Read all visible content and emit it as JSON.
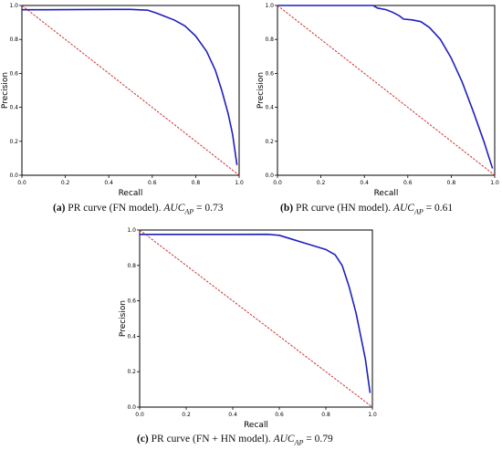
{
  "chart_data": [
    {
      "type": "line",
      "panel_id": "a",
      "xlabel": "Recall",
      "ylabel": "Precision",
      "xlim": [
        0,
        1
      ],
      "ylim": [
        0,
        1
      ],
      "xticks": [
        "0.0",
        "0.2",
        "0.4",
        "0.6",
        "0.8",
        "1.0"
      ],
      "yticks": [
        "0.0",
        "0.2",
        "0.4",
        "0.6",
        "0.8",
        "1.0"
      ],
      "grid": false,
      "series": [
        {
          "role": "pr-curve",
          "color": "#1f1fbf",
          "points": [
            [
              0,
              0.975
            ],
            [
              0.1,
              0.975
            ],
            [
              0.3,
              0.976
            ],
            [
              0.5,
              0.977
            ],
            [
              0.58,
              0.972
            ],
            [
              0.62,
              0.955
            ],
            [
              0.66,
              0.935
            ],
            [
              0.7,
              0.915
            ],
            [
              0.75,
              0.88
            ],
            [
              0.8,
              0.82
            ],
            [
              0.85,
              0.73
            ],
            [
              0.89,
              0.62
            ],
            [
              0.92,
              0.5
            ],
            [
              0.95,
              0.36
            ],
            [
              0.97,
              0.24
            ],
            [
              0.99,
              0.06
            ]
          ]
        },
        {
          "role": "baseline",
          "color": "#cc3333",
          "dashed": true,
          "points": [
            [
              0,
              1
            ],
            [
              1,
              0
            ]
          ]
        }
      ],
      "caption": {
        "label": "(a)",
        "text": "PR curve (FN model).",
        "metric": "AUC",
        "metric_sub": "AP",
        "value": "= 0.73"
      }
    },
    {
      "type": "line",
      "panel_id": "b",
      "xlabel": "Recall",
      "ylabel": "Precision",
      "xlim": [
        0,
        1
      ],
      "ylim": [
        0,
        1
      ],
      "xticks": [
        "0.0",
        "0.2",
        "0.4",
        "0.6",
        "0.8",
        "1.0"
      ],
      "yticks": [
        "0.0",
        "0.2",
        "0.4",
        "0.6",
        "0.8",
        "1.0"
      ],
      "grid": false,
      "series": [
        {
          "role": "pr-curve",
          "color": "#1f1fbf",
          "points": [
            [
              0,
              1.0
            ],
            [
              0.44,
              1.0
            ],
            [
              0.46,
              0.985
            ],
            [
              0.5,
              0.975
            ],
            [
              0.53,
              0.96
            ],
            [
              0.56,
              0.94
            ],
            [
              0.58,
              0.92
            ],
            [
              0.62,
              0.915
            ],
            [
              0.66,
              0.905
            ],
            [
              0.7,
              0.87
            ],
            [
              0.75,
              0.8
            ],
            [
              0.8,
              0.69
            ],
            [
              0.85,
              0.55
            ],
            [
              0.9,
              0.38
            ],
            [
              0.95,
              0.2
            ],
            [
              0.99,
              0.04
            ]
          ]
        },
        {
          "role": "baseline",
          "color": "#cc3333",
          "dashed": true,
          "points": [
            [
              0,
              1
            ],
            [
              1,
              0
            ]
          ]
        }
      ],
      "caption": {
        "label": "(b)",
        "text": "PR curve (HN model).",
        "metric": "AUC",
        "metric_sub": "AP",
        "value": "= 0.61"
      }
    },
    {
      "type": "line",
      "panel_id": "c",
      "xlabel": "Recall",
      "ylabel": "Precision",
      "xlim": [
        0,
        1
      ],
      "ylim": [
        0,
        1
      ],
      "xticks": [
        "0.0",
        "0.2",
        "0.4",
        "0.6",
        "0.8",
        "1.0"
      ],
      "yticks": [
        "0.0",
        "0.2",
        "0.4",
        "0.6",
        "0.8",
        "1.0"
      ],
      "grid": false,
      "series": [
        {
          "role": "pr-curve",
          "color": "#1f1fbf",
          "points": [
            [
              0,
              0.975
            ],
            [
              0.3,
              0.975
            ],
            [
              0.55,
              0.976
            ],
            [
              0.6,
              0.97
            ],
            [
              0.65,
              0.95
            ],
            [
              0.7,
              0.93
            ],
            [
              0.75,
              0.91
            ],
            [
              0.8,
              0.89
            ],
            [
              0.84,
              0.86
            ],
            [
              0.87,
              0.8
            ],
            [
              0.9,
              0.68
            ],
            [
              0.93,
              0.53
            ],
            [
              0.95,
              0.4
            ],
            [
              0.97,
              0.27
            ],
            [
              0.99,
              0.08
            ]
          ]
        },
        {
          "role": "baseline",
          "color": "#cc3333",
          "dashed": true,
          "points": [
            [
              0,
              1
            ],
            [
              1,
              0
            ]
          ]
        }
      ],
      "caption": {
        "label": "(c)",
        "text": "PR curve (FN + HN model).",
        "metric": "AUC",
        "metric_sub": "AP",
        "value": "= 0.79"
      }
    }
  ]
}
